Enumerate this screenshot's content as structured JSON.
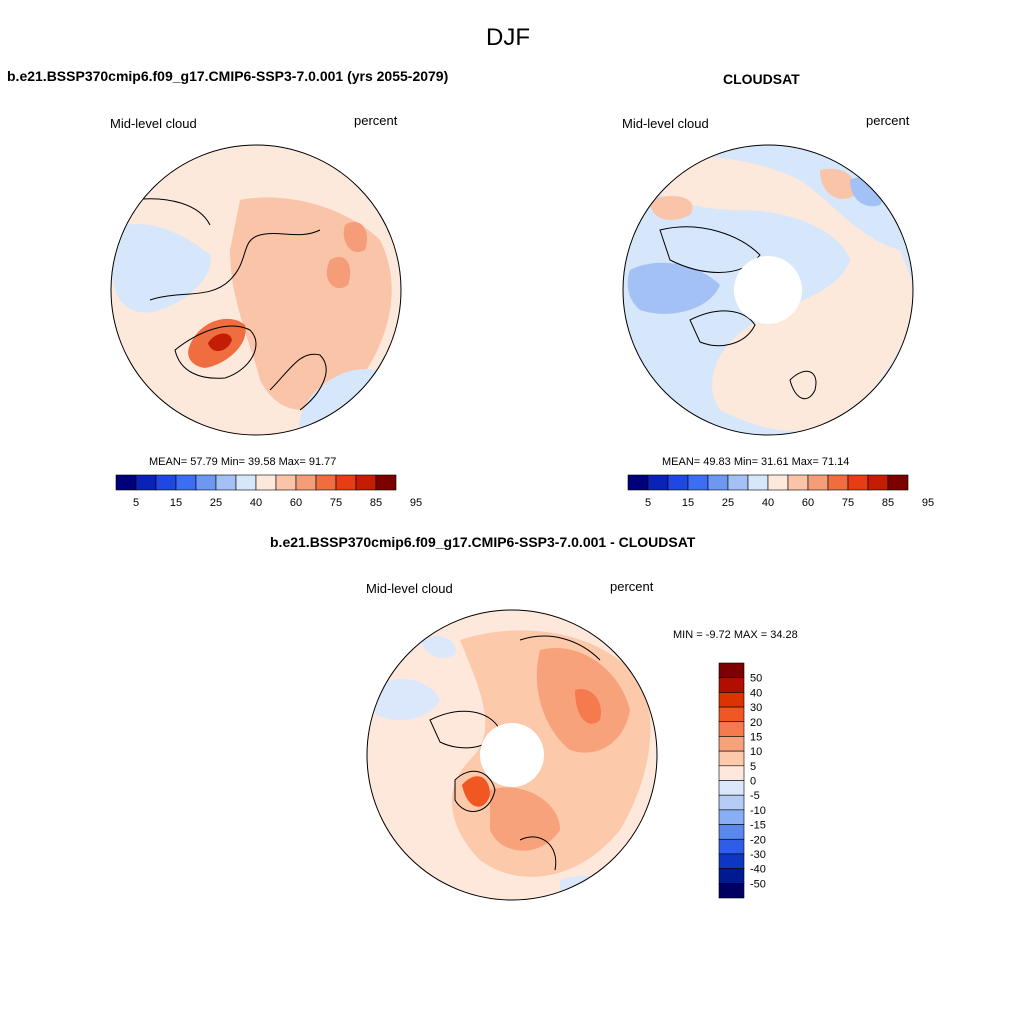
{
  "figure": {
    "title": "DJF"
  },
  "palettes": {
    "abs": [
      "#00007a",
      "#0a22b8",
      "#1f48e0",
      "#3c6ef2",
      "#6e97f2",
      "#a3c1f5",
      "#d6e6fb",
      "#fde9dc",
      "#f9c4a8",
      "#f59d78",
      "#f06d40",
      "#e53d14",
      "#c41d05",
      "#7d0000"
    ],
    "diff": [
      "#7d0000",
      "#b00f00",
      "#dd3300",
      "#f15722",
      "#f57a4d",
      "#f8a27c",
      "#fcc9aa",
      "#fde8db",
      "#dbe8fb",
      "#b5ccf7",
      "#88aef3",
      "#5b88ee",
      "#2e5ee6",
      "#0d36c4",
      "#001a92",
      "#000060"
    ]
  },
  "panels": {
    "model": {
      "title": "b.e21.BSSP370cmip6.f09_g17.CMIP6-SSP3-7.0.001 (yrs 2055-2079)",
      "left_label": "Mid-level cloud",
      "right_label": "percent",
      "stats": "MEAN=  57.79  Min=  39.58  Max=  91.77"
    },
    "obs": {
      "title": "CLOUDSAT",
      "left_label": "Mid-level cloud",
      "right_label": "percent",
      "stats": "MEAN=  49.83  Min=  31.61  Max=  71.14"
    },
    "diff": {
      "title": "b.e21.BSSP370cmip6.f09_g17.CMIP6-SSP3-7.0.001 - CLOUDSAT",
      "left_label": "Mid-level cloud",
      "right_label": "percent",
      "stats": "MIN =  -9.72 MAX =  34.28"
    }
  },
  "chart_data": [
    {
      "type": "heatmap",
      "projection": "north-polar-stereographic",
      "title": "b.e21.BSSP370cmip6.f09_g17.CMIP6-SSP3-7.0.001 (yrs 2055-2079)",
      "variable": "Mid-level cloud",
      "units": "percent",
      "mean": 57.79,
      "min": 39.58,
      "max": 91.77,
      "colorbar_levels": [
        5,
        10,
        15,
        20,
        25,
        30,
        40,
        50,
        60,
        70,
        75,
        80,
        85,
        90,
        95
      ],
      "colorbar_tick_labels": [
        "5",
        "15",
        "25",
        "40",
        "60",
        "75",
        "85",
        "95"
      ]
    },
    {
      "type": "heatmap",
      "projection": "north-polar-stereographic",
      "title": "CLOUDSAT",
      "variable": "Mid-level cloud",
      "units": "percent",
      "mean": 49.83,
      "min": 31.61,
      "max": 71.14,
      "colorbar_levels": [
        5,
        10,
        15,
        20,
        25,
        30,
        40,
        50,
        60,
        70,
        75,
        80,
        85,
        90,
        95
      ],
      "colorbar_tick_labels": [
        "5",
        "15",
        "25",
        "40",
        "60",
        "75",
        "85",
        "95"
      ]
    },
    {
      "type": "heatmap",
      "projection": "north-polar-stereographic",
      "title": "b.e21.BSSP370cmip6.f09_g17.CMIP6-SSP3-7.0.001 - CLOUDSAT",
      "variable": "Mid-level cloud",
      "units": "percent",
      "min": -9.72,
      "max": 34.28,
      "colorbar_levels": [
        50,
        40,
        30,
        20,
        15,
        10,
        5,
        0,
        -5,
        -10,
        -15,
        -20,
        -30,
        -40,
        -50
      ],
      "colorbar_tick_labels": [
        "50",
        "40",
        "30",
        "20",
        "15",
        "10",
        "5",
        "0",
        "-5",
        "-10",
        "-15",
        "-20",
        "-30",
        "-40",
        "-50"
      ]
    }
  ]
}
